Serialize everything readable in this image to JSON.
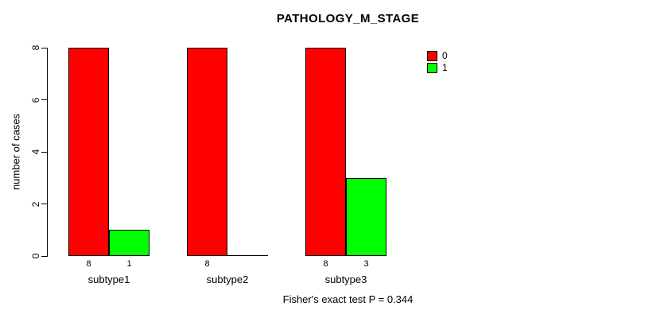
{
  "chart_data": {
    "type": "bar",
    "title": "PATHOLOGY_M_STAGE",
    "ylabel": "number of cases",
    "ylim": [
      0,
      8
    ],
    "yticks": [
      0,
      2,
      4,
      6,
      8
    ],
    "categories": [
      "subtype1",
      "subtype2",
      "subtype3"
    ],
    "series": [
      {
        "name": "0",
        "color": "#ff0000",
        "values": [
          8,
          8,
          8
        ]
      },
      {
        "name": "1",
        "color": "#00ff00",
        "values": [
          1,
          0,
          3
        ]
      }
    ],
    "value_labels": [
      [
        "8",
        "1"
      ],
      [
        "8",
        ""
      ],
      [
        "8",
        "3"
      ]
    ],
    "legend": {
      "position": "top-right",
      "entries": [
        {
          "label": "0",
          "color": "#ff0000"
        },
        {
          "label": "1",
          "color": "#00ff00"
        }
      ]
    },
    "annotation": "Fisher's exact test P = 0.344",
    "grid": false,
    "bar_border_color": "#000000",
    "background_color": "#ffffff"
  }
}
